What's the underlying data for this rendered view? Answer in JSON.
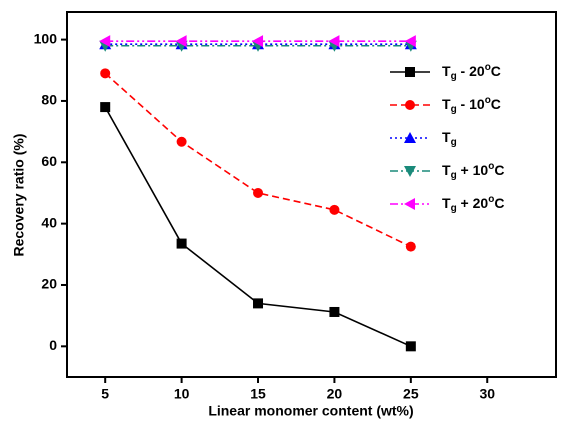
{
  "chart_data": {
    "type": "line",
    "x_label": "Linear monomer content (wt%)",
    "y_label": "Recovery ratio (%)",
    "x": [
      5,
      10,
      15,
      20,
      25
    ],
    "xlim": [
      2.5,
      34.5
    ],
    "xticks": [
      5,
      10,
      15,
      20,
      25,
      30
    ],
    "ylim": [
      -10,
      109
    ],
    "yticks": [
      0,
      20,
      40,
      60,
      80,
      100
    ],
    "legend": "upper right",
    "series": [
      {
        "name": "Tg - 20°C",
        "color": "#000000",
        "marker": "square",
        "linestyle": "solid",
        "values": [
          78,
          33.5,
          14,
          11.2,
          0
        ]
      },
      {
        "name": "Tg - 10°C",
        "color": "#ff0000",
        "marker": "circle",
        "linestyle": "dashed",
        "values": [
          89,
          66.7,
          50,
          44.5,
          32.5
        ]
      },
      {
        "name": "Tg",
        "color": "#0000ff",
        "marker": "triangle-up",
        "linestyle": "dotted",
        "values": [
          98.5,
          98.5,
          98.5,
          98.5,
          98.5
        ]
      },
      {
        "name": "Tg + 10°C",
        "color": "#1a8a7a",
        "marker": "triangle-down",
        "linestyle": "dashdot",
        "values": [
          98,
          98,
          98,
          98,
          98
        ]
      },
      {
        "name": "Tg + 20°C",
        "color": "#ff00ff",
        "marker": "triangle-left",
        "linestyle": "dashdotdot",
        "values": [
          99.5,
          99.5,
          99.5,
          99.5,
          99.5
        ]
      }
    ]
  }
}
